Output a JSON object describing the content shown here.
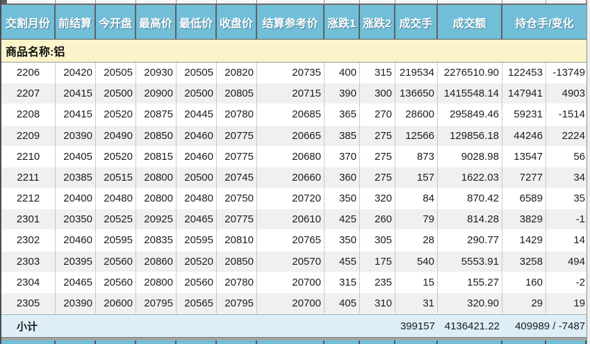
{
  "header": {
    "columns": [
      "交割月份",
      "前结算",
      "今开盘",
      "最高价",
      "最低价",
      "收盘价",
      "结算参考价",
      "涨跌1",
      "涨跌2",
      "成交手",
      "成交额",
      "持仓手/变化"
    ]
  },
  "commodity": {
    "label": "商品名称:铝"
  },
  "rows": [
    {
      "month": "2206",
      "prev_settle": "20420",
      "open": "20505",
      "high": "20930",
      "low": "20505",
      "close": "20820",
      "settle_ref": "20735",
      "chg1": "400",
      "chg2": "315",
      "volume": "219534",
      "turnover": "2276510.90",
      "oi": "122453",
      "oi_chg": "-13749"
    },
    {
      "month": "2207",
      "prev_settle": "20415",
      "open": "20500",
      "high": "20900",
      "low": "20500",
      "close": "20805",
      "settle_ref": "20715",
      "chg1": "390",
      "chg2": "300",
      "volume": "136650",
      "turnover": "1415548.14",
      "oi": "147941",
      "oi_chg": "4903"
    },
    {
      "month": "2208",
      "prev_settle": "20415",
      "open": "20520",
      "high": "20875",
      "low": "20445",
      "close": "20780",
      "settle_ref": "20685",
      "chg1": "365",
      "chg2": "270",
      "volume": "28600",
      "turnover": "295849.46",
      "oi": "59231",
      "oi_chg": "-1514"
    },
    {
      "month": "2209",
      "prev_settle": "20390",
      "open": "20490",
      "high": "20850",
      "low": "20460",
      "close": "20775",
      "settle_ref": "20665",
      "chg1": "385",
      "chg2": "275",
      "volume": "12566",
      "turnover": "129856.18",
      "oi": "44246",
      "oi_chg": "2224"
    },
    {
      "month": "2210",
      "prev_settle": "20405",
      "open": "20520",
      "high": "20815",
      "low": "20460",
      "close": "20775",
      "settle_ref": "20680",
      "chg1": "370",
      "chg2": "275",
      "volume": "873",
      "turnover": "9028.98",
      "oi": "13547",
      "oi_chg": "56"
    },
    {
      "month": "2211",
      "prev_settle": "20385",
      "open": "20515",
      "high": "20800",
      "low": "20500",
      "close": "20745",
      "settle_ref": "20660",
      "chg1": "360",
      "chg2": "275",
      "volume": "157",
      "turnover": "1622.03",
      "oi": "7277",
      "oi_chg": "34"
    },
    {
      "month": "2212",
      "prev_settle": "20400",
      "open": "20480",
      "high": "20800",
      "low": "20480",
      "close": "20750",
      "settle_ref": "20720",
      "chg1": "350",
      "chg2": "320",
      "volume": "84",
      "turnover": "870.42",
      "oi": "6589",
      "oi_chg": "35"
    },
    {
      "month": "2301",
      "prev_settle": "20350",
      "open": "20525",
      "high": "20925",
      "low": "20465",
      "close": "20775",
      "settle_ref": "20610",
      "chg1": "425",
      "chg2": "260",
      "volume": "79",
      "turnover": "814.28",
      "oi": "3829",
      "oi_chg": "-1"
    },
    {
      "month": "2302",
      "prev_settle": "20460",
      "open": "20595",
      "high": "20835",
      "low": "20595",
      "close": "20810",
      "settle_ref": "20765",
      "chg1": "350",
      "chg2": "305",
      "volume": "28",
      "turnover": "290.77",
      "oi": "1429",
      "oi_chg": "14"
    },
    {
      "month": "2303",
      "prev_settle": "20395",
      "open": "20560",
      "high": "20860",
      "low": "20520",
      "close": "20850",
      "settle_ref": "20570",
      "chg1": "455",
      "chg2": "175",
      "volume": "540",
      "turnover": "5553.91",
      "oi": "3258",
      "oi_chg": "494"
    },
    {
      "month": "2304",
      "prev_settle": "20465",
      "open": "20560",
      "high": "20800",
      "low": "20560",
      "close": "20780",
      "settle_ref": "20700",
      "chg1": "315",
      "chg2": "235",
      "volume": "15",
      "turnover": "155.27",
      "oi": "160",
      "oi_chg": "-2"
    },
    {
      "month": "2305",
      "prev_settle": "20390",
      "open": "20600",
      "high": "20795",
      "low": "20565",
      "close": "20795",
      "settle_ref": "20700",
      "chg1": "405",
      "chg2": "310",
      "volume": "31",
      "turnover": "320.90",
      "oi": "29",
      "oi_chg": "19"
    }
  ],
  "subtotal": {
    "label": "小计",
    "volume": "399157",
    "turnover": "4136421.22",
    "oi_change": "409989 / -7487"
  },
  "colors": {
    "header_bg": "#71BED9",
    "header_text": "#FFFFFF",
    "commodity_bg": "#FBF4CA",
    "row_alt_bg": "#F0F0F0",
    "subtotal_bg": "#DDEEF7",
    "header_sep": "#5C6063"
  }
}
